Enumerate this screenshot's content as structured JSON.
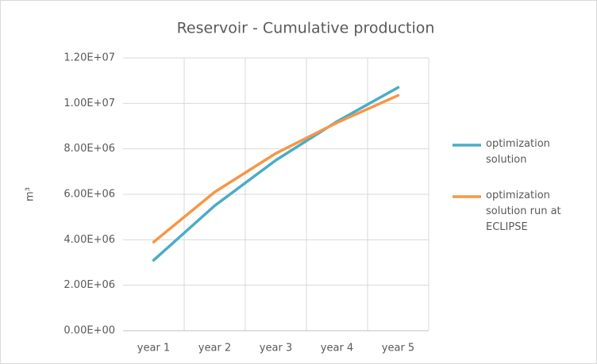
{
  "chart_data": {
    "type": "line",
    "title": "Reservoir - Cumulative production",
    "y_label": "m³",
    "categories": [
      "year 1",
      "year 2",
      "year 3",
      "year 4",
      "year 5"
    ],
    "series": [
      {
        "name": "optimization solution",
        "color": "#4bacc6",
        "values": [
          3100000,
          5500000,
          7500000,
          9200000,
          10700000
        ]
      },
      {
        "name": "optimization solution run at ECLIPSE",
        "color": "#f79646",
        "values": [
          3900000,
          6100000,
          7800000,
          9150000,
          10350000
        ]
      }
    ],
    "ylim": [
      0,
      12000000
    ],
    "yticks": [
      {
        "value": 0,
        "label": "0.00E+00"
      },
      {
        "value": 2000000,
        "label": "2.00E+06"
      },
      {
        "value": 4000000,
        "label": "4.00E+06"
      },
      {
        "value": 6000000,
        "label": "6.00E+06"
      },
      {
        "value": 8000000,
        "label": "8.00E+06"
      },
      {
        "value": 10000000,
        "label": "1.00E+07"
      },
      {
        "value": 12000000,
        "label": "1.20E+07"
      }
    ],
    "grid": true
  }
}
